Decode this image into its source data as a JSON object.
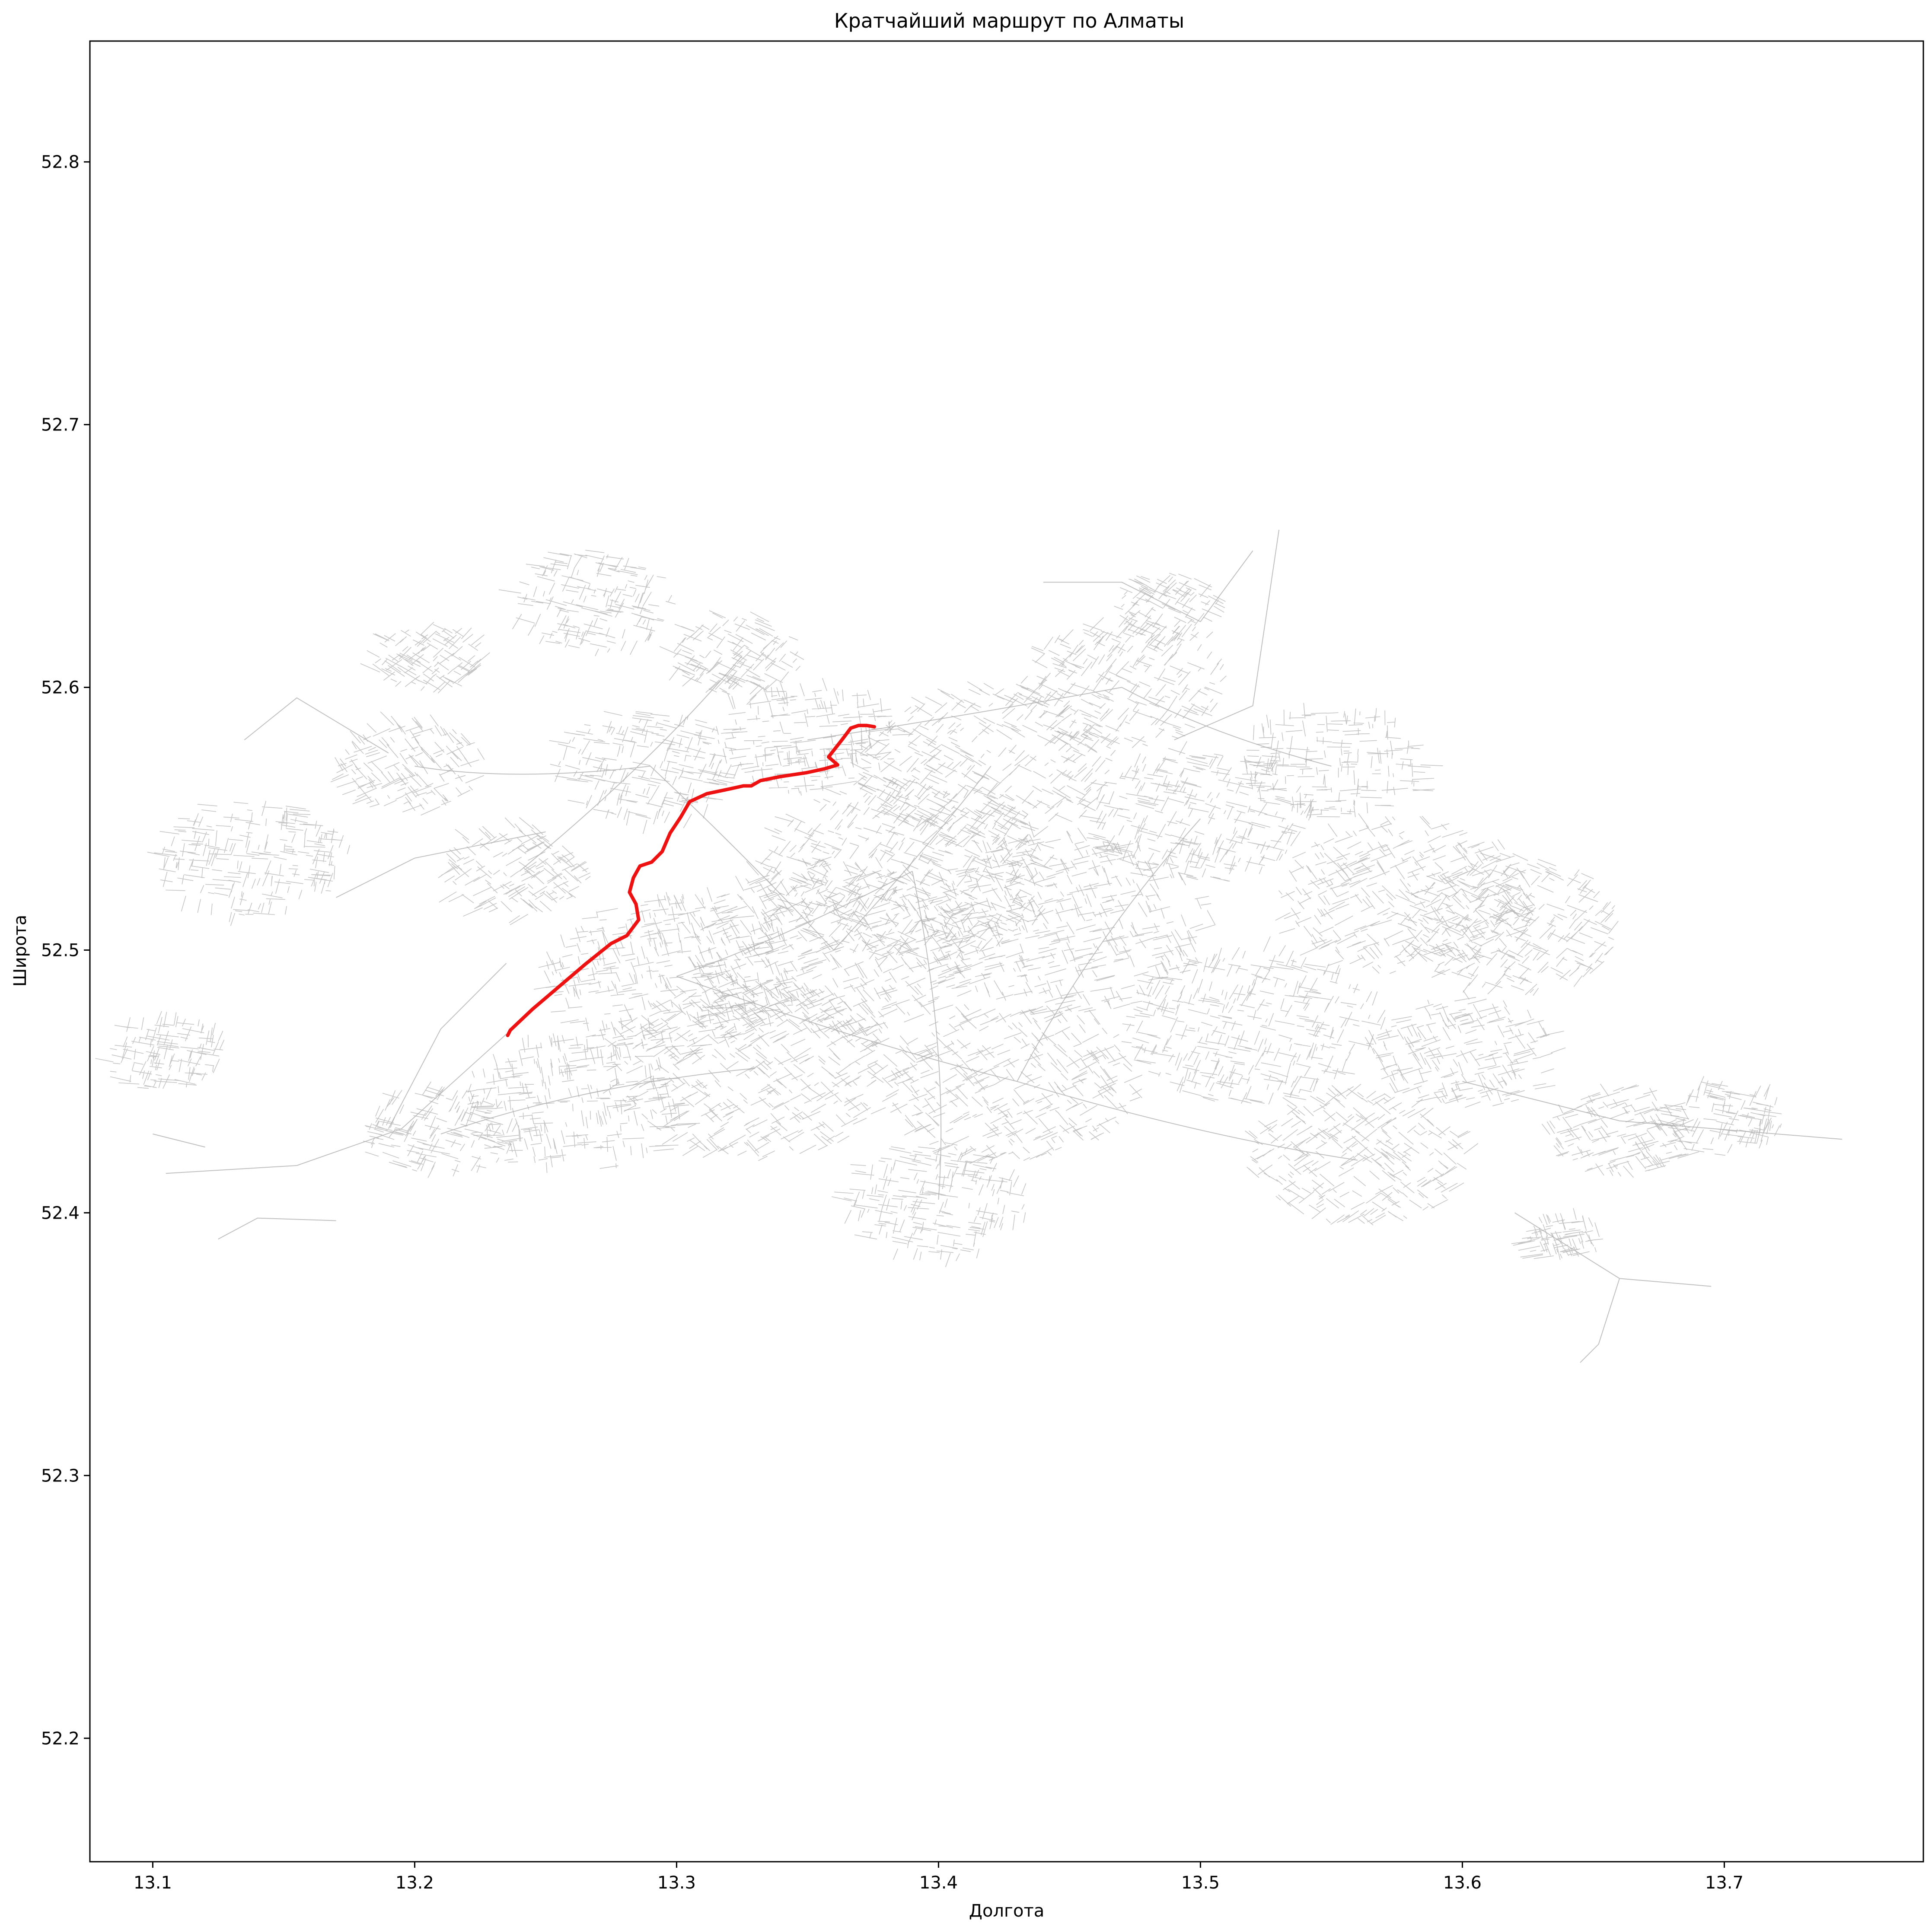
{
  "chart_data": {
    "type": "map",
    "title": "Кратчайший маршрут по Алматы",
    "xlabel": "Долгота",
    "ylabel": "Широта",
    "xlim": [
      13.076,
      13.776
    ],
    "ylim": [
      52.153,
      52.846
    ],
    "xticks": [
      "13.1",
      "13.2",
      "13.3",
      "13.4",
      "13.5",
      "13.6",
      "13.7"
    ],
    "xtick_values": [
      13.1,
      13.2,
      13.3,
      13.4,
      13.5,
      13.6,
      13.7
    ],
    "yticks": [
      "52.2",
      "52.3",
      "52.4",
      "52.5",
      "52.6",
      "52.7",
      "52.8"
    ],
    "ytick_values": [
      52.2,
      52.3,
      52.4,
      52.5,
      52.6,
      52.7,
      52.8
    ],
    "grid": false,
    "colors": {
      "road_network": "#b0b0b0",
      "route": "#ee1111"
    },
    "route": {
      "lon": [
        13.2355,
        13.2365,
        13.245,
        13.255,
        13.265,
        13.275,
        13.281,
        13.2855,
        13.2845,
        13.282,
        13.2835,
        13.286,
        13.2905,
        13.2945,
        13.2975,
        13.3015,
        13.305,
        13.3115,
        13.321,
        13.3255,
        13.3285,
        13.332,
        13.3395,
        13.3495,
        13.3565,
        13.3615,
        13.358,
        13.3635,
        13.3665,
        13.3695,
        13.3725,
        13.3755
      ],
      "lat": [
        52.4675,
        52.4695,
        52.4775,
        52.486,
        52.4945,
        52.5025,
        52.5055,
        52.5115,
        52.5175,
        52.522,
        52.5275,
        52.532,
        52.5335,
        52.5375,
        52.5445,
        52.5505,
        52.5565,
        52.5595,
        52.5615,
        52.5625,
        52.5625,
        52.5645,
        52.566,
        52.5675,
        52.569,
        52.5705,
        52.5735,
        52.5805,
        52.5845,
        52.5855,
        52.5855,
        52.585
      ]
    },
    "road_network": {
      "description_note": "",
      "seed": 20240531,
      "clusters": [
        {
          "lon": 13.27,
          "lat": 52.633,
          "r": 0.022
        },
        {
          "lon": 13.325,
          "lat": 52.612,
          "r": 0.018
        },
        {
          "lon": 13.205,
          "lat": 52.61,
          "r": 0.015
        },
        {
          "lon": 13.14,
          "lat": 52.535,
          "r": 0.026
        },
        {
          "lon": 13.105,
          "lat": 52.46,
          "r": 0.016
        },
        {
          "lon": 13.2,
          "lat": 52.57,
          "r": 0.02
        },
        {
          "lon": 13.24,
          "lat": 52.53,
          "r": 0.02
        },
        {
          "lon": 13.26,
          "lat": 52.44,
          "r": 0.03
        },
        {
          "lon": 13.33,
          "lat": 52.455,
          "r": 0.04
        },
        {
          "lon": 13.36,
          "lat": 52.5,
          "r": 0.04
        },
        {
          "lon": 13.3,
          "lat": 52.49,
          "r": 0.035
        },
        {
          "lon": 13.39,
          "lat": 52.53,
          "r": 0.04
        },
        {
          "lon": 13.42,
          "lat": 52.57,
          "r": 0.035
        },
        {
          "lon": 13.45,
          "lat": 52.51,
          "r": 0.04
        },
        {
          "lon": 13.43,
          "lat": 52.45,
          "r": 0.035
        },
        {
          "lon": 13.4,
          "lat": 52.405,
          "r": 0.025
        },
        {
          "lon": 13.47,
          "lat": 52.6,
          "r": 0.028
        },
        {
          "lon": 13.5,
          "lat": 52.55,
          "r": 0.03
        },
        {
          "lon": 13.52,
          "lat": 52.47,
          "r": 0.035
        },
        {
          "lon": 13.56,
          "lat": 52.42,
          "r": 0.03
        },
        {
          "lon": 13.58,
          "lat": 52.52,
          "r": 0.035
        },
        {
          "lon": 13.62,
          "lat": 52.51,
          "r": 0.03
        },
        {
          "lon": 13.6,
          "lat": 52.46,
          "r": 0.025
        },
        {
          "lon": 13.55,
          "lat": 52.57,
          "r": 0.025
        },
        {
          "lon": 13.66,
          "lat": 52.43,
          "r": 0.02
        },
        {
          "lon": 13.7,
          "lat": 52.435,
          "r": 0.016
        },
        {
          "lon": 13.64,
          "lat": 52.39,
          "r": 0.01
        },
        {
          "lon": 13.29,
          "lat": 52.57,
          "r": 0.025
        },
        {
          "lon": 13.35,
          "lat": 52.58,
          "r": 0.025
        },
        {
          "lon": 13.49,
          "lat": 52.63,
          "r": 0.015
        },
        {
          "lon": 13.21,
          "lat": 52.43,
          "r": 0.02
        }
      ]
    }
  }
}
